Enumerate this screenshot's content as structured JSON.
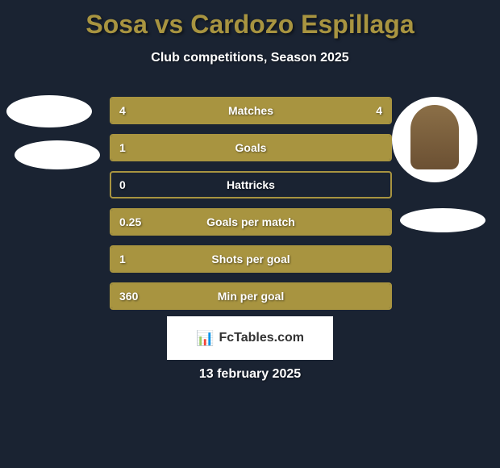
{
  "title": "Sosa vs Cardozo Espillaga",
  "subtitle": "Club competitions, Season 2025",
  "date": "13 february 2025",
  "logo_text": "FcTables.com",
  "colors": {
    "background": "#1a2332",
    "accent": "#a89440",
    "text": "#ffffff",
    "logo_bg": "#ffffff",
    "logo_text": "#333333"
  },
  "stats": [
    {
      "label": "Matches",
      "left_value": "4",
      "right_value": "4",
      "left_fill_pct": 100,
      "right_fill_pct": 0
    },
    {
      "label": "Goals",
      "left_value": "1",
      "right_value": "",
      "left_fill_pct": 100,
      "right_fill_pct": 0
    },
    {
      "label": "Hattricks",
      "left_value": "0",
      "right_value": "",
      "left_fill_pct": 0,
      "right_fill_pct": 0
    },
    {
      "label": "Goals per match",
      "left_value": "0.25",
      "right_value": "",
      "left_fill_pct": 100,
      "right_fill_pct": 0
    },
    {
      "label": "Shots per goal",
      "left_value": "1",
      "right_value": "",
      "left_fill_pct": 100,
      "right_fill_pct": 0
    },
    {
      "label": "Min per goal",
      "left_value": "360",
      "right_value": "",
      "left_fill_pct": 100,
      "right_fill_pct": 0
    }
  ]
}
